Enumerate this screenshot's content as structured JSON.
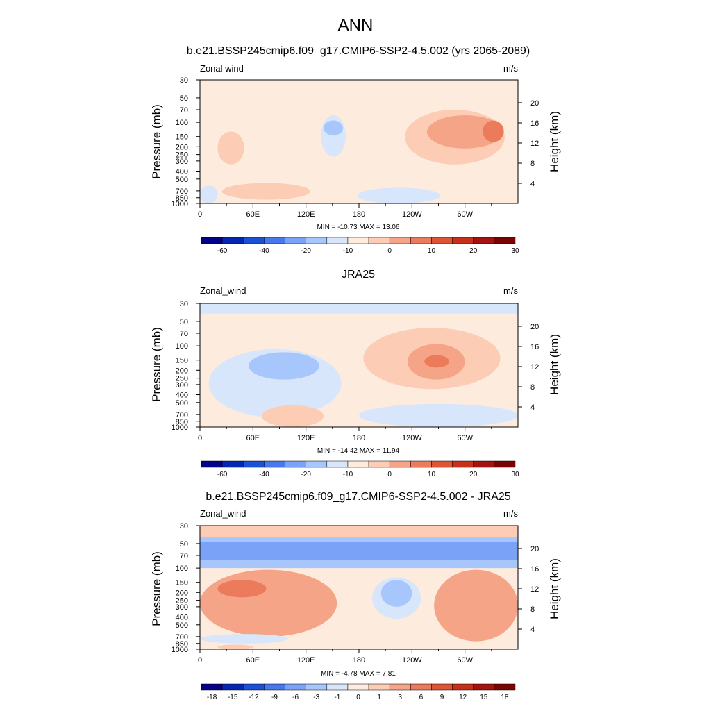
{
  "figure": {
    "main_title": "ANN"
  },
  "chart_data": [
    {
      "type": "heatmap",
      "title": "b.e21.BSSP245cmip6.f09_g17.CMIP6-SSP2-4.5.002 (yrs 2065-2089)",
      "left_label": "Zonal wind",
      "right_label": "m/s",
      "stats_text": "MIN = -10.73  MAX =  13.06",
      "ylabel_left": "Pressure (mb)",
      "ylabel_right": "Height (km)",
      "x_ticks": [
        "0",
        "60E",
        "120E",
        "180",
        "120W",
        "60W"
      ],
      "y_ticks": [
        "30",
        "50",
        "70",
        "100",
        "150",
        "200",
        "250",
        "300",
        "400",
        "500",
        "700",
        "850",
        "1000"
      ],
      "y2_ticks": [
        "20",
        "16",
        "12",
        "8",
        "4"
      ],
      "xlim": [
        0,
        360
      ],
      "ylim": [
        1000,
        30
      ],
      "colorbar": {
        "labels": [
          "-60",
          "-40",
          "-20",
          "-10",
          "0",
          "10",
          "20",
          "30"
        ],
        "colors": [
          "#05008a",
          "#0327b0",
          "#1b51d6",
          "#4778f0",
          "#7aa3f8",
          "#a7c7fc",
          "#d7e6fb",
          "#fdebdd",
          "#fcccb4",
          "#f6a487",
          "#ec7b5b",
          "#df5534",
          "#c7301b",
          "#a3130f",
          "#7a0403"
        ]
      },
      "features": [
        {
          "level": 7,
          "lon": [
            0,
            360
          ],
          "p": [
            30,
            1000
          ]
        },
        {
          "level": 6,
          "lon": [
            137,
            165
          ],
          "p": [
            82,
            265
          ],
          "desc": "easterly region over Indian Ocean / maritime"
        },
        {
          "level": 5,
          "lon": [
            140,
            162
          ],
          "p": [
            95,
            145
          ]
        },
        {
          "level": 8,
          "lon": [
            232,
            345
          ],
          "p": [
            70,
            330
          ]
        },
        {
          "level": 9,
          "lon": [
            257,
            343
          ],
          "p": [
            82,
            210
          ]
        },
        {
          "level": 10,
          "lon": [
            320,
            344
          ],
          "p": [
            95,
            175
          ]
        },
        {
          "level": 8,
          "lon": [
            20,
            50
          ],
          "p": [
            130,
            330
          ]
        },
        {
          "level": 8,
          "lon": [
            25,
            125
          ],
          "p": [
            560,
            900
          ]
        },
        {
          "level": 6,
          "lon": [
            0,
            20
          ],
          "p": [
            600,
            1000
          ]
        },
        {
          "level": 6,
          "lon": [
            178,
            272
          ],
          "p": [
            640,
            1000
          ]
        }
      ],
      "topography": true
    },
    {
      "type": "heatmap",
      "title": "JRA25",
      "left_label": "Zonal_wind",
      "right_label": "m/s",
      "stats_text": "MIN = -14.42  MAX =  11.94",
      "ylabel_left": "Pressure (mb)",
      "ylabel_right": "Height (km)",
      "x_ticks": [
        "0",
        "60E",
        "120E",
        "180",
        "120W",
        "60W"
      ],
      "y_ticks": [
        "30",
        "50",
        "70",
        "100",
        "150",
        "200",
        "250",
        "300",
        "400",
        "500",
        "700",
        "850",
        "1000"
      ],
      "y2_ticks": [
        "20",
        "16",
        "12",
        "8",
        "4"
      ],
      "xlim": [
        0,
        360
      ],
      "ylim": [
        1000,
        30
      ],
      "colorbar": {
        "labels": [
          "-60",
          "-40",
          "-20",
          "-10",
          "0",
          "10",
          "20",
          "30"
        ],
        "colors": [
          "#05008a",
          "#0327b0",
          "#1b51d6",
          "#4778f0",
          "#7aa3f8",
          "#a7c7fc",
          "#d7e6fb",
          "#fdebdd",
          "#fcccb4",
          "#f6a487",
          "#ec7b5b",
          "#df5534",
          "#c7301b",
          "#a3130f",
          "#7a0403"
        ]
      },
      "features": [
        {
          "level": 7,
          "lon": [
            0,
            360
          ],
          "p": [
            30,
            1000
          ]
        },
        {
          "level": 6,
          "lon": [
            0,
            360
          ],
          "p": [
            30,
            40
          ]
        },
        {
          "level": 6,
          "lon": [
            10,
            160
          ],
          "p": [
            110,
            760
          ]
        },
        {
          "level": 5,
          "lon": [
            55,
            135
          ],
          "p": [
            120,
            260
          ]
        },
        {
          "level": 8,
          "lon": [
            185,
            340
          ],
          "p": [
            60,
            340
          ]
        },
        {
          "level": 9,
          "lon": [
            235,
            300
          ],
          "p": [
            95,
            260
          ]
        },
        {
          "level": 10,
          "lon": [
            254,
            282
          ],
          "p": [
            130,
            185
          ]
        },
        {
          "level": 8,
          "lon": [
            70,
            140
          ],
          "p": [
            540,
            1000
          ]
        },
        {
          "level": 6,
          "lon": [
            180,
            360
          ],
          "p": [
            520,
            1000
          ]
        }
      ],
      "topography": false
    },
    {
      "type": "heatmap",
      "title": "b.e21.BSSP245cmip6.f09_g17.CMIP6-SSP2-4.5.002 - JRA25",
      "left_label": "Zonal_wind",
      "right_label": "m/s",
      "stats_text": "MIN =  -4.78  MAX =   7.81",
      "ylabel_left": "Pressure (mb)",
      "ylabel_right": "Height (km)",
      "x_ticks": [
        "0",
        "60E",
        "120E",
        "180",
        "120W",
        "60W"
      ],
      "y_ticks": [
        "30",
        "50",
        "70",
        "100",
        "150",
        "200",
        "250",
        "300",
        "400",
        "500",
        "700",
        "850",
        "1000"
      ],
      "y2_ticks": [
        "20",
        "16",
        "12",
        "8",
        "4"
      ],
      "xlim": [
        0,
        360
      ],
      "ylim": [
        1000,
        30
      ],
      "colorbar": {
        "labels": [
          "-18",
          "-15",
          "-12",
          "-9",
          "-6",
          "-3",
          "-1",
          "0",
          "1",
          "3",
          "6",
          "9",
          "12",
          "15",
          "18"
        ],
        "colors": [
          "#05008a",
          "#0327b0",
          "#1b51d6",
          "#4778f0",
          "#7aa3f8",
          "#a7c7fc",
          "#d7e6fb",
          "#fdebdd",
          "#fcccb4",
          "#f6a487",
          "#ec7b5b",
          "#df5534",
          "#c7301b",
          "#a3130f",
          "#7a0403"
        ]
      },
      "features": [
        {
          "level": 7,
          "lon": [
            0,
            360
          ],
          "p": [
            30,
            1000
          ]
        },
        {
          "level": 8,
          "lon": [
            0,
            360
          ],
          "p": [
            30,
            42
          ]
        },
        {
          "level": 5,
          "lon": [
            0,
            360
          ],
          "p": [
            42,
            100
          ]
        },
        {
          "level": 4,
          "lon": [
            0,
            360
          ],
          "p": [
            48,
            80
          ]
        },
        {
          "level": 9,
          "lon": [
            0,
            155
          ],
          "p": [
            105,
            700
          ]
        },
        {
          "level": 10,
          "lon": [
            20,
            75
          ],
          "p": [
            140,
            230
          ]
        },
        {
          "level": 6,
          "lon": [
            195,
            250
          ],
          "p": [
            130,
            420
          ]
        },
        {
          "level": 5,
          "lon": [
            205,
            240
          ],
          "p": [
            140,
            300
          ]
        },
        {
          "level": 9,
          "lon": [
            265,
            360
          ],
          "p": [
            105,
            800
          ]
        },
        {
          "level": 6,
          "lon": [
            0,
            100
          ],
          "p": [
            650,
            850
          ]
        },
        {
          "level": 8,
          "lon": [
            20,
            60
          ],
          "p": [
            880,
            1000
          ]
        }
      ],
      "topography": true
    }
  ]
}
